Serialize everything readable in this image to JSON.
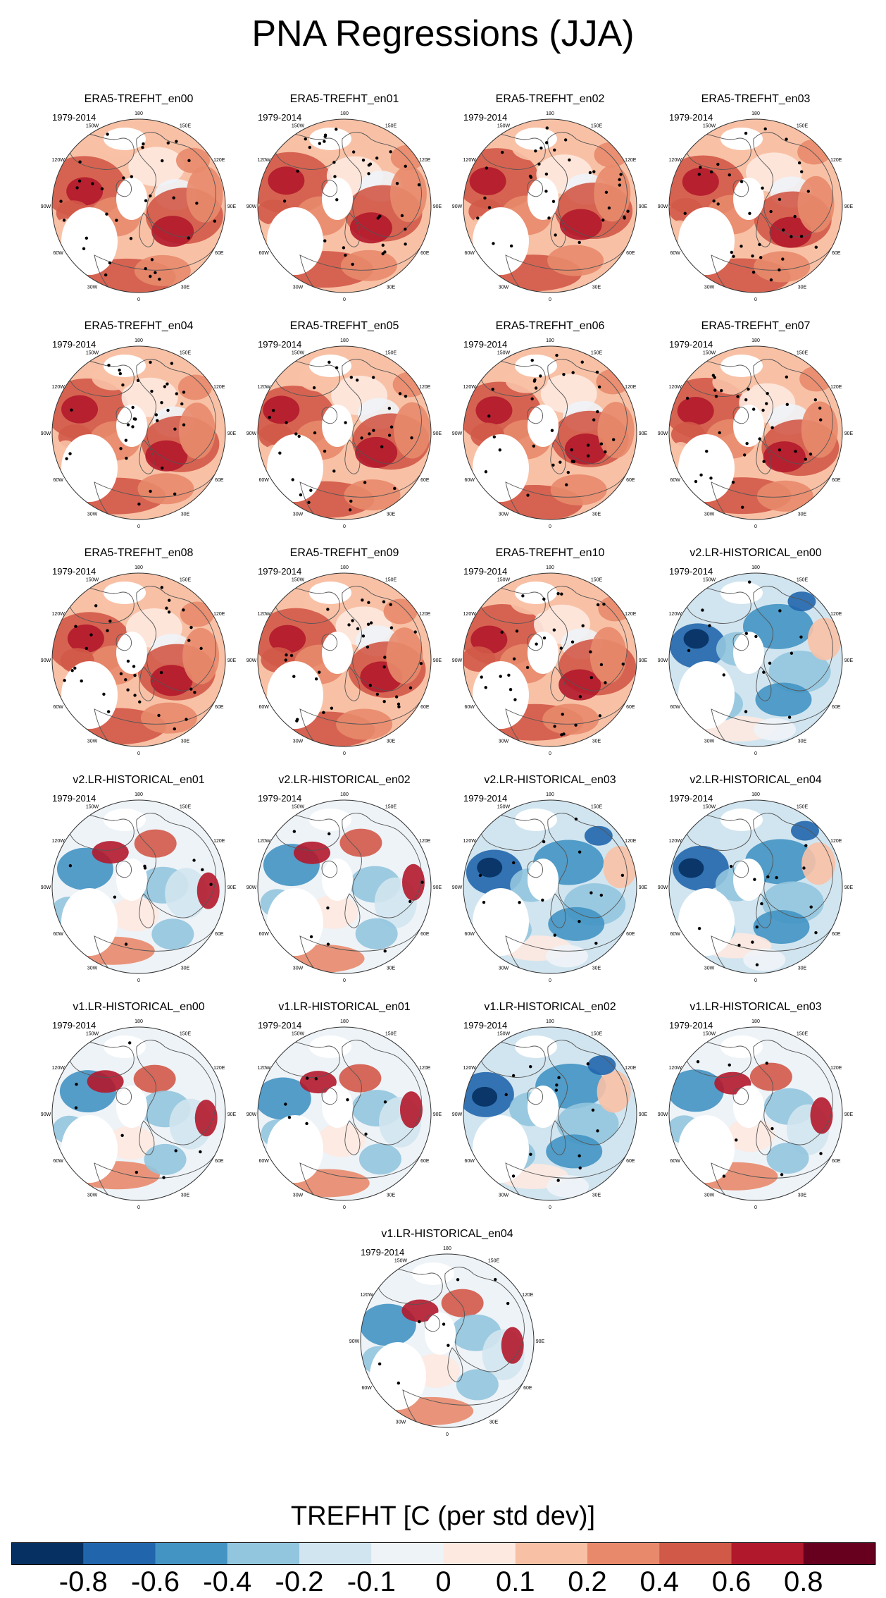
{
  "title": "PNA Regressions (JJA)",
  "period": "1979-2014",
  "lon_labels": [
    "180",
    "150E",
    "120E",
    "90E",
    "60E",
    "30E",
    "0",
    "30W",
    "60W",
    "90W",
    "120W",
    "150W"
  ],
  "panels": [
    {
      "name": "ERA5-TREFHT_en00",
      "pattern": "era5"
    },
    {
      "name": "ERA5-TREFHT_en01",
      "pattern": "era5"
    },
    {
      "name": "ERA5-TREFHT_en02",
      "pattern": "era5"
    },
    {
      "name": "ERA5-TREFHT_en03",
      "pattern": "era5"
    },
    {
      "name": "ERA5-TREFHT_en04",
      "pattern": "era5"
    },
    {
      "name": "ERA5-TREFHT_en05",
      "pattern": "era5"
    },
    {
      "name": "ERA5-TREFHT_en06",
      "pattern": "era5"
    },
    {
      "name": "ERA5-TREFHT_en07",
      "pattern": "era5"
    },
    {
      "name": "ERA5-TREFHT_en08",
      "pattern": "era5"
    },
    {
      "name": "ERA5-TREFHT_en09",
      "pattern": "era5"
    },
    {
      "name": "ERA5-TREFHT_en10",
      "pattern": "era5"
    },
    {
      "name": "v2.LR-HISTORICAL_en00",
      "pattern": "cool"
    },
    {
      "name": "v2.LR-HISTORICAL_en01",
      "pattern": "mixed"
    },
    {
      "name": "v2.LR-HISTORICAL_en02",
      "pattern": "mixed"
    },
    {
      "name": "v2.LR-HISTORICAL_en03",
      "pattern": "cool"
    },
    {
      "name": "v2.LR-HISTORICAL_en04",
      "pattern": "cool"
    },
    {
      "name": "v1.LR-HISTORICAL_en00",
      "pattern": "mixed"
    },
    {
      "name": "v1.LR-HISTORICAL_en01",
      "pattern": "mixed"
    },
    {
      "name": "v1.LR-HISTORICAL_en02",
      "pattern": "cool"
    },
    {
      "name": "v1.LR-HISTORICAL_en03",
      "pattern": "mixed"
    },
    {
      "name": "v1.LR-HISTORICAL_en04",
      "pattern": "mixed"
    }
  ],
  "colorbar": {
    "title": "TREFHT [C (per std dev)]",
    "colors": [
      "#053061",
      "#2166ac",
      "#4393c3",
      "#92c5de",
      "#d1e5f0",
      "#eef3f7",
      "#fde9e0",
      "#f8c1a6",
      "#e8896c",
      "#d15948",
      "#b2182b",
      "#67001f"
    ],
    "labels": [
      "-0.8",
      "-0.6",
      "-0.4",
      "-0.2",
      "-0.1",
      "0",
      "0.1",
      "0.2",
      "0.4",
      "0.6",
      "0.8"
    ]
  }
}
